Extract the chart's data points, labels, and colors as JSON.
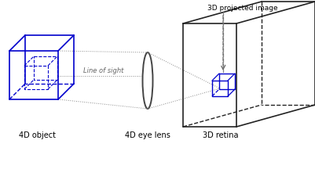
{
  "bg_color": "#ffffff",
  "cube_color": "#0000cc",
  "box_color": "#222222",
  "lens_color": "#444444",
  "dot_line_color": "#888888",
  "arrow_color": "#666666",
  "label_4d_object": "4D object",
  "label_4d_lens": "4D eye lens",
  "label_3d_retina": "3D retina",
  "label_projected": "3D projected image",
  "label_line_of_sight": "Line of sight",
  "figsize": [
    4.01,
    2.16
  ],
  "dpi": 100
}
